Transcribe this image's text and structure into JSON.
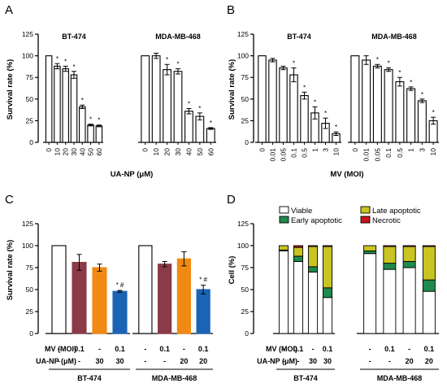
{
  "panels": {
    "A": {
      "letter": "A",
      "ylabel": "Survival rate (%)",
      "xlabel": "UA-NP (μM)"
    },
    "B": {
      "letter": "B",
      "ylabel": "Survival rate (%)",
      "xlabel": "MV (MOI)"
    },
    "C": {
      "letter": "C",
      "ylabel": "Survival rate (%)"
    },
    "D": {
      "letter": "D",
      "ylabel": "Cell (%)"
    }
  },
  "axis": {
    "yticks": [
      "0",
      "25",
      "50",
      "75",
      "100",
      "125"
    ]
  },
  "treatment_rows": {
    "mv_label": "MV (MOI)",
    "ua_label": "UA-NP (μM)"
  },
  "colors": {
    "control": "#ffffff",
    "mv": "#8b3a47",
    "ua": "#f08a14",
    "combo": "#1a63b5",
    "viable": "#ffffff",
    "early": "#1f8a4c",
    "late": "#c8c422",
    "necrotic": "#c8151b"
  },
  "chart_data": [
    {
      "panel": "A",
      "type": "bar",
      "ylabel": "Survival rate (%)",
      "xlabel": "UA-NP (μM)",
      "ylim": [
        0,
        125
      ],
      "groups": [
        {
          "name": "BT-474",
          "categories": [
            "0",
            "10",
            "20",
            "30",
            "40",
            "50",
            "60"
          ],
          "values": [
            100,
            88,
            85,
            78,
            41,
            20,
            19
          ],
          "errors": [
            0,
            3,
            3,
            4,
            2,
            1,
            1
          ],
          "stars": [
            "",
            "*",
            "*",
            "*",
            "*",
            "*",
            "*"
          ]
        },
        {
          "name": "MDA-MB-468",
          "categories": [
            "0",
            "10",
            "20",
            "30",
            "40",
            "50",
            "60"
          ],
          "values": [
            100,
            100,
            84,
            82,
            36,
            30,
            16
          ],
          "errors": [
            0,
            3,
            6,
            3,
            3,
            4,
            1
          ],
          "stars": [
            "",
            "",
            "*",
            "*",
            "*",
            "*",
            "*"
          ]
        }
      ]
    },
    {
      "panel": "B",
      "type": "bar",
      "ylabel": "Survival rate (%)",
      "xlabel": "MV (MOI)",
      "ylim": [
        0,
        125
      ],
      "groups": [
        {
          "name": "BT-474",
          "categories": [
            "0",
            "0.01",
            "0.05",
            "0.1",
            "0.5",
            "1",
            "3",
            "10"
          ],
          "values": [
            100,
            95,
            86,
            78,
            54,
            34,
            22,
            10
          ],
          "errors": [
            0,
            2,
            2,
            8,
            4,
            7,
            6,
            2
          ],
          "stars": [
            "",
            "",
            "",
            "*",
            "*",
            "*",
            "*",
            "*"
          ]
        },
        {
          "name": "MDA-MB-468",
          "categories": [
            "0",
            "0.01",
            "0.05",
            "0.1",
            "0.5",
            "1",
            "3",
            "10"
          ],
          "values": [
            100,
            95,
            88,
            84,
            70,
            62,
            48,
            25
          ],
          "errors": [
            0,
            5,
            2,
            2,
            5,
            2,
            2,
            4
          ],
          "stars": [
            "",
            "",
            "*",
            "*",
            "*",
            "*",
            "*",
            "*"
          ]
        }
      ]
    },
    {
      "panel": "C",
      "type": "bar",
      "ylabel": "Survival rate (%)",
      "ylim": [
        0,
        125
      ],
      "rows": {
        "MV (MOI)": [
          "-",
          "0.1",
          "-",
          "0.1"
        ],
        "UA-NP (μM)": [
          "-",
          "-",
          "30",
          "30"
        ]
      },
      "rows_468": {
        "MV (MOI)": [
          "-",
          "0.1",
          "-",
          "0.1"
        ],
        "UA-NP (μM)": [
          "-",
          "-",
          "20",
          "20"
        ]
      },
      "groups": [
        {
          "name": "BT-474",
          "values": [
            100,
            81,
            75,
            48
          ],
          "errors": [
            0,
            9,
            4,
            1
          ],
          "marks": [
            "",
            "",
            "",
            "* #"
          ]
        },
        {
          "name": "MDA-MB-468",
          "values": [
            100,
            79,
            85,
            50
          ],
          "errors": [
            0,
            3,
            8,
            5
          ],
          "marks": [
            "",
            "",
            "",
            "* #"
          ]
        }
      ]
    },
    {
      "panel": "D",
      "type": "bar",
      "ylabel": "Cell (%)",
      "ylim": [
        0,
        125
      ],
      "stacked": true,
      "legend": [
        "Viable",
        "Late apoptotic",
        "Early apoptotic",
        "Necrotic"
      ],
      "rows": {
        "MV (MOI)": [
          "-",
          "0.1",
          "-",
          "0.1"
        ],
        "UA-NP (μM)": [
          "-",
          "-",
          "30",
          "30"
        ]
      },
      "rows_468": {
        "MV (MOI)": [
          "-",
          "0.1",
          "-",
          "0.1"
        ],
        "UA-NP (μM)": [
          "-",
          "-",
          "20",
          "20"
        ]
      },
      "groups": [
        {
          "name": "BT-474",
          "stacks": [
            {
              "Viable": 94,
              "Early apoptotic": 1,
              "Late apoptotic": 5,
              "Necrotic": 0
            },
            {
              "Viable": 82,
              "Early apoptotic": 6,
              "Late apoptotic": 10,
              "Necrotic": 2
            },
            {
              "Viable": 70,
              "Early apoptotic": 6,
              "Late apoptotic": 23,
              "Necrotic": 1
            },
            {
              "Viable": 41,
              "Early apoptotic": 11,
              "Late apoptotic": 47,
              "Necrotic": 1
            }
          ]
        },
        {
          "name": "MDA-MB-468",
          "stacks": [
            {
              "Viable": 91,
              "Early apoptotic": 3,
              "Late apoptotic": 6,
              "Necrotic": 0
            },
            {
              "Viable": 73,
              "Early apoptotic": 7,
              "Late apoptotic": 19,
              "Necrotic": 1
            },
            {
              "Viable": 75,
              "Early apoptotic": 7,
              "Late apoptotic": 17,
              "Necrotic": 1
            },
            {
              "Viable": 48,
              "Early apoptotic": 13,
              "Late apoptotic": 38,
              "Necrotic": 1
            }
          ]
        }
      ]
    }
  ]
}
